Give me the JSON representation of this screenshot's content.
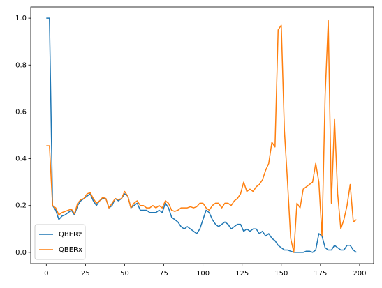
{
  "chart_data": {
    "type": "line",
    "x": [
      0,
      2,
      4,
      6,
      8,
      10,
      12,
      14,
      16,
      18,
      20,
      22,
      24,
      26,
      28,
      30,
      32,
      34,
      36,
      38,
      40,
      42,
      44,
      46,
      48,
      50,
      52,
      54,
      56,
      58,
      60,
      62,
      64,
      66,
      68,
      70,
      72,
      74,
      76,
      78,
      80,
      82,
      84,
      86,
      88,
      90,
      92,
      94,
      96,
      98,
      100,
      102,
      104,
      106,
      108,
      110,
      112,
      114,
      116,
      118,
      120,
      122,
      124,
      126,
      128,
      130,
      132,
      134,
      136,
      138,
      140,
      142,
      144,
      146,
      148,
      150,
      152,
      154,
      156,
      158,
      160,
      162,
      164,
      166,
      168,
      170,
      172,
      174,
      176,
      178,
      180,
      182,
      184,
      186,
      188,
      190,
      192,
      194,
      196,
      198
    ],
    "series": [
      {
        "name": "QBERz",
        "color": "#1f77b4",
        "values": [
          1.0,
          1.0,
          0.2,
          0.18,
          0.14,
          0.155,
          0.16,
          0.17,
          0.18,
          0.16,
          0.2,
          0.22,
          0.23,
          0.24,
          0.25,
          0.22,
          0.2,
          0.22,
          0.23,
          0.23,
          0.19,
          0.2,
          0.23,
          0.22,
          0.23,
          0.25,
          0.24,
          0.19,
          0.2,
          0.21,
          0.18,
          0.18,
          0.18,
          0.17,
          0.17,
          0.17,
          0.18,
          0.17,
          0.21,
          0.19,
          0.15,
          0.14,
          0.13,
          0.11,
          0.1,
          0.11,
          0.1,
          0.09,
          0.08,
          0.1,
          0.14,
          0.18,
          0.17,
          0.14,
          0.12,
          0.11,
          0.12,
          0.13,
          0.12,
          0.1,
          0.11,
          0.12,
          0.12,
          0.09,
          0.1,
          0.09,
          0.1,
          0.1,
          0.08,
          0.09,
          0.07,
          0.08,
          0.06,
          0.05,
          0.03,
          0.02,
          0.01,
          0.01,
          0.005,
          0.0,
          0.0,
          0.0,
          0.0,
          0.005,
          0.005,
          0.0,
          0.01,
          0.08,
          0.07,
          0.02,
          0.01,
          0.01,
          0.03,
          0.02,
          0.01,
          0.01,
          0.03,
          0.03,
          0.01,
          0.0
        ]
      },
      {
        "name": "QBERx",
        "color": "#ff7f0e",
        "values": [
          0.455,
          0.455,
          0.2,
          0.19,
          0.16,
          0.17,
          0.175,
          0.18,
          0.185,
          0.165,
          0.21,
          0.225,
          0.23,
          0.25,
          0.255,
          0.23,
          0.21,
          0.22,
          0.235,
          0.23,
          0.19,
          0.21,
          0.23,
          0.225,
          0.23,
          0.26,
          0.24,
          0.19,
          0.21,
          0.22,
          0.2,
          0.2,
          0.19,
          0.19,
          0.2,
          0.19,
          0.2,
          0.19,
          0.22,
          0.21,
          0.18,
          0.175,
          0.18,
          0.19,
          0.19,
          0.19,
          0.195,
          0.19,
          0.195,
          0.21,
          0.21,
          0.19,
          0.18,
          0.2,
          0.21,
          0.21,
          0.19,
          0.21,
          0.21,
          0.2,
          0.22,
          0.23,
          0.25,
          0.3,
          0.26,
          0.27,
          0.26,
          0.28,
          0.29,
          0.31,
          0.35,
          0.38,
          0.47,
          0.45,
          0.95,
          0.97,
          0.52,
          0.3,
          0.06,
          0.0,
          0.21,
          0.19,
          0.27,
          0.28,
          0.29,
          0.3,
          0.38,
          0.3,
          0.07,
          0.67,
          0.99,
          0.21,
          0.57,
          0.25,
          0.1,
          0.14,
          0.2,
          0.29,
          0.13,
          0.14
        ]
      }
    ],
    "xlim": [
      -9.95,
      208.95
    ],
    "ylim": [
      -0.048,
      1.048
    ],
    "xticks": [
      0,
      25,
      50,
      75,
      100,
      125,
      150,
      175,
      200
    ],
    "yticks": [
      {
        "value": 0,
        "label": "0.0"
      },
      0.2,
      0.4,
      0.6,
      0.8,
      {
        "value": 1,
        "label": "1.0"
      }
    ],
    "legend": "lower left"
  }
}
